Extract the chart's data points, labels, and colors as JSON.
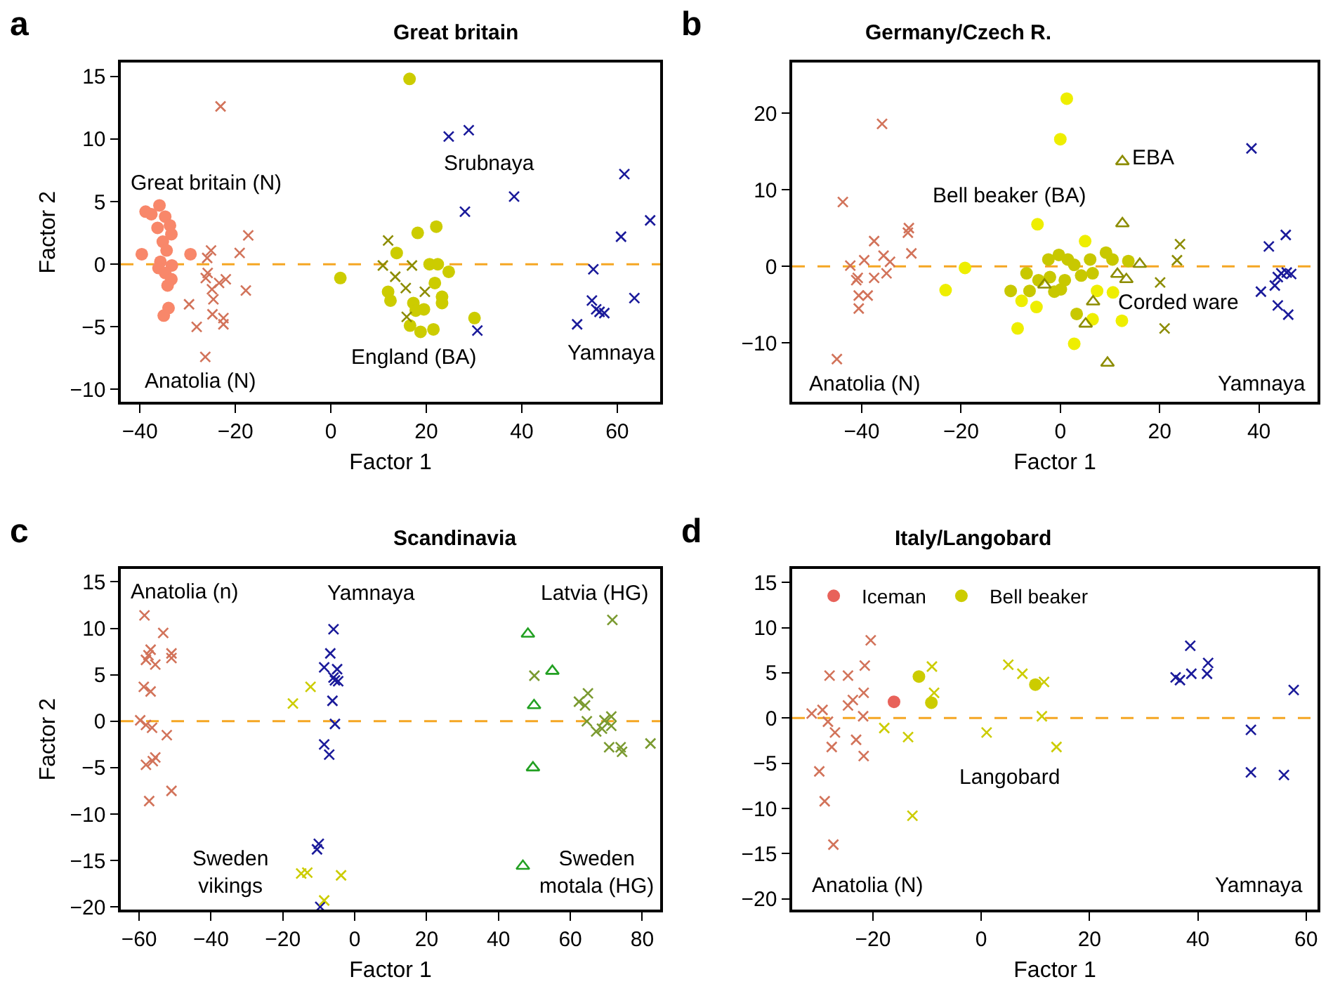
{
  "chart_data": [
    {
      "type": "scatter",
      "title": "Great britain",
      "xlabel": "Factor 1",
      "ylabel": "Factor 2",
      "xlim": [
        -44,
        69
      ],
      "ylim": [
        -11,
        16.1
      ],
      "xticks": [
        -40,
        -20,
        0,
        20,
        40,
        60
      ],
      "yticks": [
        -10,
        -5,
        0,
        5,
        10,
        15
      ],
      "series": [
        {
          "color": "#f8876a",
          "marker": "circle",
          "x": [
            -39.6,
            -38.8,
            -37.6,
            -35.9,
            -36.3,
            -34.7,
            -33.7,
            -33.4,
            -35.2,
            -34.4,
            -35.7,
            -33.3,
            -36.1,
            -34.7,
            -33.4,
            -34.2,
            -29.4,
            -34.0,
            -35.0
          ],
          "values": [
            0.8,
            4.2,
            4.0,
            4.7,
            2.9,
            3.8,
            3.1,
            2.4,
            1.8,
            1.1,
            0.2,
            -0.1,
            -0.3,
            -0.7,
            -1.2,
            -1.7,
            0.8,
            -3.5,
            -4.1
          ]
        },
        {
          "color": "#d2735a",
          "marker": "cross",
          "x": [
            -23.1,
            -25.9,
            -25.1,
            -25.8,
            -26.2,
            -24.9,
            -24.6,
            -23.4,
            -22.0,
            -19.1,
            -17.3,
            -17.8,
            -29.7,
            -28.1,
            -24.8,
            -22.5,
            -22.5,
            -26.3
          ],
          "values": [
            12.6,
            0.5,
            1.1,
            -0.7,
            -1.1,
            -2.0,
            -2.8,
            -1.5,
            -1.2,
            0.9,
            2.3,
            -2.1,
            -3.2,
            -5.0,
            -4.0,
            -4.3,
            -4.8,
            -7.4
          ]
        },
        {
          "color": "#cccc00",
          "marker": "circle",
          "x": [
            16.5,
            2.0,
            13.8,
            18.2,
            22.1,
            20.7,
            22.4,
            24.7,
            21.8,
            12.0,
            12.5,
            23.3,
            23.3,
            17.3,
            17.8,
            19.5,
            16.6,
            18.8,
            21.5,
            30.1
          ],
          "values": [
            14.8,
            -1.1,
            0.9,
            2.5,
            3.0,
            0.0,
            0.0,
            -0.6,
            -1.5,
            -2.2,
            -2.9,
            -2.6,
            -3.1,
            -3.1,
            -3.7,
            -3.6,
            -4.9,
            -5.4,
            -5.2,
            -4.3
          ]
        },
        {
          "color": "#8c8c00",
          "marker": "cross",
          "x": [
            12.0,
            10.9,
            17.0,
            13.5,
            15.7,
            19.7,
            15.9
          ],
          "values": [
            1.9,
            -0.1,
            -0.1,
            -1.0,
            -1.9,
            -2.2,
            -4.2
          ]
        },
        {
          "color": "#1a1a9a",
          "marker": "cross",
          "x": [
            24.7,
            28.9,
            38.4,
            28.1,
            30.7,
            61.5,
            66.9,
            60.8,
            55.0,
            54.7,
            55.6,
            56.3,
            57.3,
            51.6,
            63.6
          ],
          "values": [
            10.2,
            10.7,
            5.4,
            4.2,
            -5.3,
            7.2,
            3.5,
            2.2,
            -0.4,
            -2.9,
            -3.6,
            -3.8,
            -3.9,
            -4.8,
            -2.7
          ]
        }
      ],
      "ref_lines": [
        {
          "axis": "y",
          "value": 0,
          "color": "#f5a623",
          "line_style": "dashed"
        }
      ],
      "annotations": [
        "a",
        "Great britain (N)",
        "Srubnaya",
        "Anatolia (N)",
        "England (BA)",
        "Yamnaya"
      ]
    },
    {
      "type": "scatter",
      "title": "Germany/Czech R.",
      "xlabel": "Factor 1",
      "xlim": [
        -54,
        51.8
      ],
      "ylim": [
        -17.7,
        26.6
      ],
      "xticks": [
        -40,
        -20,
        0,
        20,
        40
      ],
      "yticks": [
        -10,
        0,
        10,
        20
      ],
      "series": [
        {
          "color": "#d2735a",
          "marker": "cross",
          "x": [
            -35.9,
            -43.8,
            -30.5,
            -30.7,
            -30.0,
            -37.5,
            -42.3,
            -39.5,
            -35.6,
            -34.3,
            -35.0,
            -37.5,
            -40.8,
            -41.1,
            -40.6,
            -38.8,
            -40.6,
            -45.0
          ],
          "values": [
            18.6,
            8.4,
            5.0,
            4.4,
            1.7,
            3.3,
            0.1,
            0.8,
            1.4,
            0.6,
            -0.9,
            -1.5,
            -1.5,
            -1.8,
            -3.8,
            -3.8,
            -5.5,
            -12.1
          ]
        },
        {
          "color": "#1a1a9a",
          "marker": "cross",
          "x": [
            38.5,
            42.0,
            45.4,
            40.4,
            43.2,
            43.8,
            44.5,
            45.6,
            46.5,
            43.8,
            45.9
          ],
          "values": [
            15.4,
            2.6,
            4.1,
            -3.3,
            -2.5,
            -1.4,
            -0.9,
            -0.8,
            -1.0,
            -5.1,
            -6.3
          ]
        },
        {
          "color": "#c8c800",
          "marker": "circle",
          "x": [
            -10.0,
            -6.8,
            -6.2,
            -4.4,
            -2.1,
            -2.4,
            -0.3,
            1.5,
            2.8,
            0.9,
            -1.2,
            0.1,
            4.2,
            6.0,
            6.5,
            9.2,
            10.5,
            13.7,
            3.3
          ],
          "values": [
            -3.2,
            -0.9,
            -3.2,
            -1.8,
            -1.4,
            0.9,
            1.5,
            0.9,
            0.2,
            -1.8,
            -3.3,
            -3.0,
            -1.2,
            0.9,
            -0.9,
            1.8,
            0.9,
            0.7,
            -6.2
          ]
        },
        {
          "color": "#eeee00",
          "marker": "circle",
          "x": [
            1.3,
            0.0,
            -4.6,
            5.0,
            -19.2,
            -23.1,
            -8.6,
            2.8,
            12.4,
            10.6,
            7.4,
            -7.8,
            -4.8,
            6.5
          ],
          "values": [
            21.9,
            16.6,
            5.5,
            3.3,
            -0.2,
            -3.1,
            -8.1,
            -10.1,
            -7.1,
            -3.4,
            -3.2,
            -4.5,
            -5.3,
            -6.9
          ]
        },
        {
          "color": "#8c8c00",
          "marker": "cross",
          "x": [
            24.1,
            23.5,
            20.1,
            21.0
          ],
          "values": [
            2.9,
            0.8,
            -2.1,
            -8.1
          ]
        },
        {
          "color": "#8c8c00",
          "marker": "triangle",
          "x": [
            12.5,
            12.5,
            -3.2,
            6.6,
            5.1,
            9.5,
            11.5,
            13.3,
            16.0
          ],
          "values": [
            13.7,
            5.6,
            -2.4,
            -4.6,
            -7.5,
            -12.6,
            -1.0,
            -1.7,
            0.3
          ]
        }
      ],
      "ref_lines": [
        {
          "axis": "y",
          "value": 0,
          "color": "#f5a623",
          "line_style": "dashed"
        }
      ],
      "annotations": [
        "b",
        "EBA",
        "Bell beaker (BA)",
        "Corded ware",
        "Anatolia (N)",
        "Yamnaya"
      ]
    },
    {
      "type": "scatter",
      "title": "Scandinavia",
      "xlabel": "Factor 1",
      "ylabel": "Factor 2",
      "xlim": [
        -65.1,
        85
      ],
      "ylim": [
        -20.3,
        16.4
      ],
      "xticks": [
        -60,
        -40,
        -20,
        0,
        20,
        40,
        60,
        80
      ],
      "yticks": [
        -20,
        -15,
        -10,
        -5,
        0,
        5,
        10,
        15
      ],
      "series": [
        {
          "color": "#d2735a",
          "marker": "cross",
          "x": [
            -58.5,
            -53.3,
            -56.8,
            -57.4,
            -58.1,
            -55.5,
            -51.0,
            -51.0,
            -58.7,
            -56.8,
            -59.7,
            -58.1,
            -56.4,
            -52.3,
            -55.5,
            -56.2,
            -58.1,
            -51.0,
            -57.2
          ],
          "values": [
            11.4,
            9.5,
            7.7,
            7.1,
            6.6,
            6.1,
            7.3,
            6.8,
            3.7,
            3.2,
            0.1,
            -0.4,
            -0.7,
            -1.5,
            -3.9,
            -4.3,
            -4.7,
            -7.5,
            -8.6
          ]
        },
        {
          "color": "#1a1a9a",
          "marker": "cross",
          "x": [
            -5.9,
            -6.8,
            -8.5,
            -4.9,
            -5.9,
            -5.5,
            -4.6,
            -6.2,
            -5.5,
            -8.5,
            -7.1,
            -10.0,
            -10.5,
            -9.6
          ],
          "values": [
            9.9,
            7.3,
            5.8,
            5.6,
            4.7,
            4.4,
            4.3,
            2.2,
            -0.3,
            -2.5,
            -3.6,
            -13.2,
            -13.8,
            -20.0
          ]
        },
        {
          "color": "#cccc00",
          "marker": "cross",
          "x": [
            -17.2,
            -12.3,
            -14.9,
            -13.2,
            -3.8,
            -8.5
          ],
          "values": [
            1.9,
            3.7,
            -16.4,
            -16.3,
            -16.6,
            -19.3
          ]
        },
        {
          "color": "#22a022",
          "marker": "triangle",
          "x": [
            48.2,
            55.0,
            49.9,
            49.6,
            46.8
          ],
          "values": [
            9.4,
            5.4,
            1.7,
            -5.0,
            -15.6
          ]
        },
        {
          "color": "#7a9a30",
          "marker": "cross",
          "x": [
            71.7,
            50.0,
            64.9,
            62.4,
            64.1,
            64.6,
            67.2,
            68.8,
            71.4,
            71.4,
            69.5,
            70.8,
            74.0,
            74.4,
            82.3
          ],
          "values": [
            10.9,
            4.9,
            3.0,
            2.1,
            1.7,
            0.0,
            -1.1,
            -0.8,
            0.5,
            -0.5,
            0.1,
            -2.8,
            -2.8,
            -3.3,
            -2.4
          ]
        }
      ],
      "ref_lines": [
        {
          "axis": "y",
          "value": 0,
          "color": "#f5a623",
          "line_style": "dashed"
        }
      ],
      "annotations": [
        "c",
        "Anatolia (n)",
        "Yamnaya",
        "Latvia (HG)",
        "Sweden\nvikings",
        "Sweden\nmotala (HG)"
      ]
    },
    {
      "type": "scatter",
      "title": "Italy/Langobard",
      "xlabel": "Factor 1",
      "xlim": [
        -34.9,
        62.1
      ],
      "ylim": [
        -21.2,
        16.5
      ],
      "xticks": [
        -20,
        0,
        20,
        40,
        60
      ],
      "yticks": [
        -20,
        -15,
        -10,
        -5,
        0,
        5,
        10,
        15
      ],
      "legend": "top left",
      "series": [
        {
          "name": "Iceman",
          "color": "#e8625a",
          "marker": "circle",
          "x": [
            -16.1
          ],
          "values": [
            1.8
          ]
        },
        {
          "name": "Bell beaker",
          "color": "#cccc00",
          "marker": "circle",
          "x": [
            -11.5,
            -9.2,
            10.0
          ],
          "values": [
            4.6,
            1.7,
            3.7
          ]
        },
        {
          "color": "#cccc00",
          "marker": "cross",
          "x": [
            -9.1,
            -8.7,
            -17.9,
            -13.5,
            -12.7,
            1.0,
            5.0,
            7.6,
            11.6,
            11.2,
            13.9
          ],
          "values": [
            5.7,
            2.8,
            -1.1,
            -2.1,
            -10.8,
            -1.6,
            5.9,
            4.9,
            4.0,
            0.2,
            -3.2
          ]
        },
        {
          "color": "#d2735a",
          "marker": "cross",
          "x": [
            -20.4,
            -28.0,
            -24.6,
            -21.5,
            -21.7,
            -23.7,
            -24.6,
            -21.8,
            -31.3,
            -29.3,
            -28.3,
            -27.0,
            -27.6,
            -23.1,
            -21.7,
            -29.9,
            -28.9,
            -27.3
          ],
          "values": [
            8.6,
            4.7,
            4.7,
            5.8,
            2.8,
            2.0,
            1.4,
            0.2,
            0.5,
            0.9,
            -0.4,
            -1.6,
            -3.2,
            -2.4,
            -4.2,
            -5.9,
            -9.2,
            -14.0
          ]
        },
        {
          "color": "#1a1a9a",
          "marker": "cross",
          "x": [
            38.6,
            35.9,
            36.7,
            38.8,
            41.7,
            41.9,
            57.7,
            49.8,
            49.8,
            55.9
          ],
          "values": [
            8.0,
            4.5,
            4.2,
            4.9,
            4.9,
            6.1,
            3.1,
            -1.3,
            -6.0,
            -6.3
          ]
        }
      ],
      "ref_lines": [
        {
          "axis": "y",
          "value": 0,
          "color": "#f5a623",
          "line_style": "dashed"
        }
      ],
      "annotations": [
        "d",
        "Langobard",
        "Anatolia (N)",
        "Yamnaya"
      ]
    }
  ]
}
